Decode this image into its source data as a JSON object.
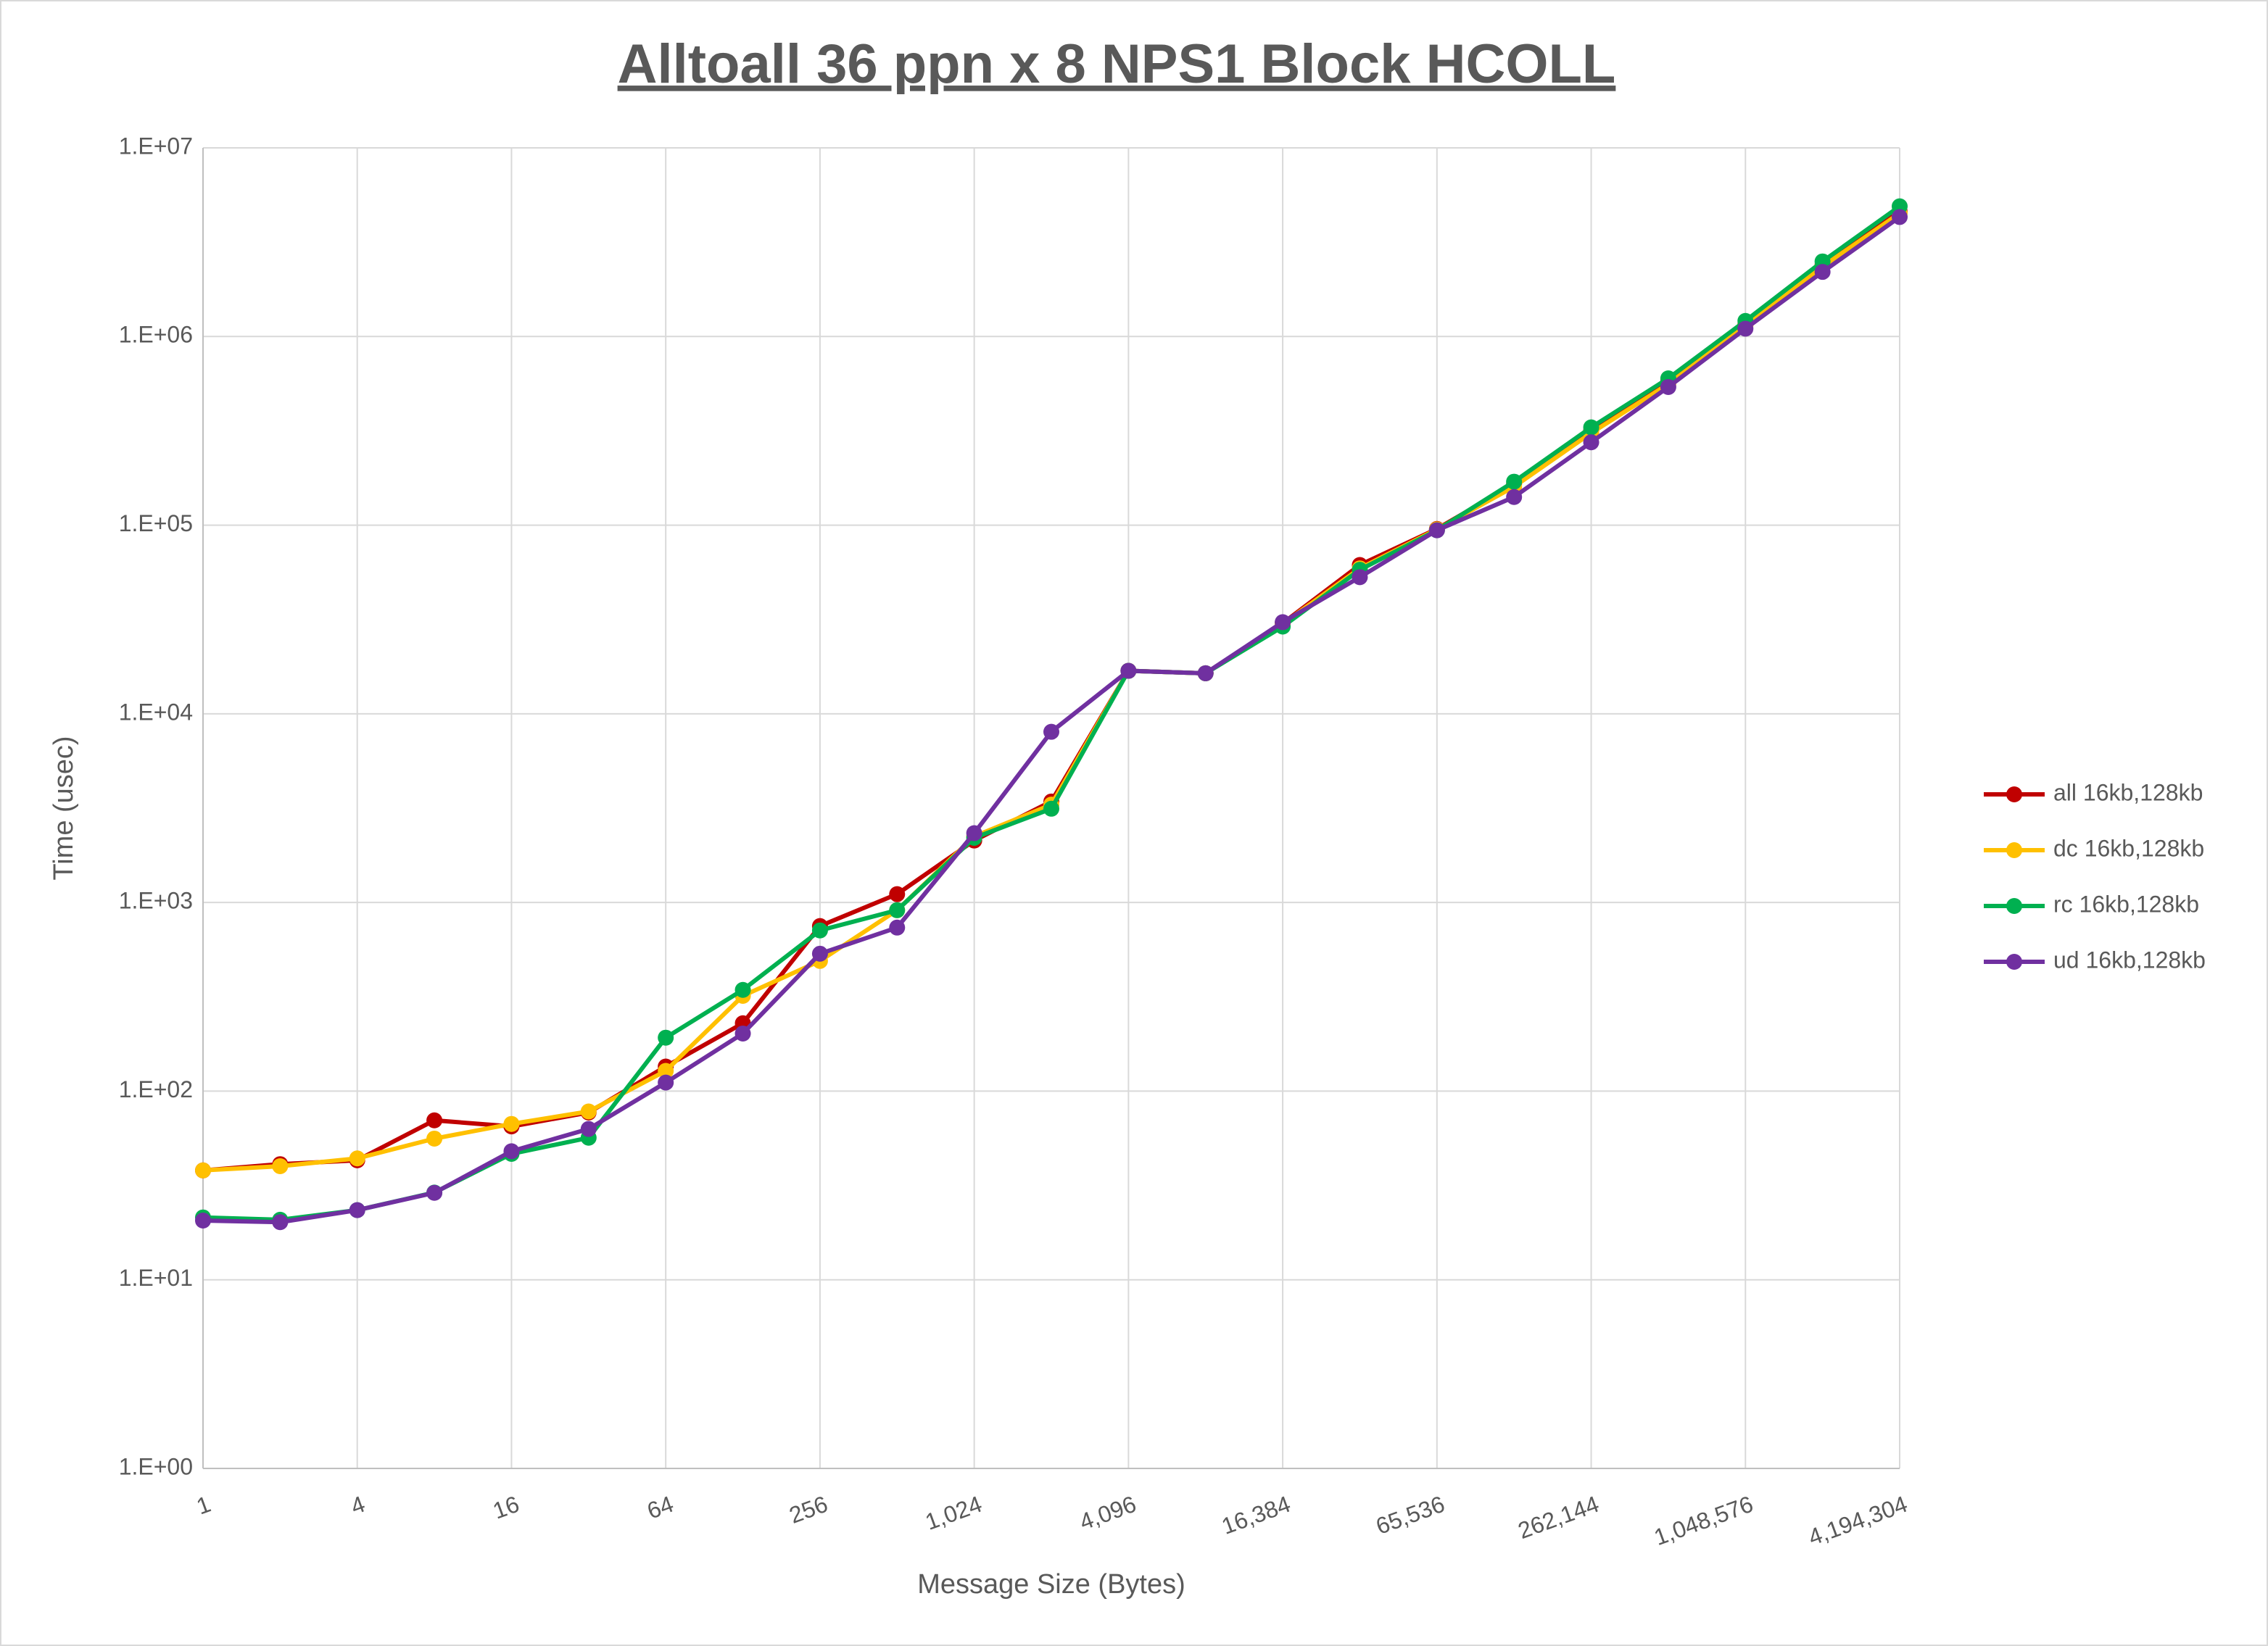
{
  "chart_data": {
    "type": "line",
    "title": "Alltoall 36 ppn x 8 NPS1 Block HCOLL",
    "x_label": "Message Size (Bytes)",
    "y_label": "Time (usec)",
    "x": [
      1,
      2,
      4,
      8,
      16,
      32,
      64,
      128,
      256,
      512,
      1024,
      2048,
      4096,
      8192,
      16384,
      32768,
      65536,
      131072,
      262144,
      524288,
      1048576,
      2097152,
      4194304
    ],
    "series": [
      {
        "name": "all 16kb,128kb",
        "color": "#c00000",
        "values": [
          38,
          41,
          43,
          70,
          65,
          77,
          135,
          229,
          750,
          1107,
          2130,
          3430,
          16900,
          16400,
          30200,
          61500,
          95500,
          165000,
          318000,
          582000,
          1160000,
          2400000,
          4600000
        ]
      },
      {
        "name": "dc 16kb,128kb",
        "color": "#ffc000",
        "values": [
          38,
          40,
          44,
          56,
          67,
          78,
          128,
          320,
          490,
          910,
          2240,
          3300,
          16900,
          16400,
          30000,
          59000,
          95000,
          160000,
          308000,
          560000,
          1140000,
          2350000,
          4500000
        ]
      },
      {
        "name": "rc 16kb,128kb",
        "color": "#00b050",
        "values": [
          21.4,
          20.8,
          23.4,
          29,
          46.5,
          56.6,
          192,
          344,
          711,
          910,
          2200,
          3140,
          16900,
          16400,
          29000,
          58000,
          94000,
          170000,
          330000,
          600000,
          1210000,
          2500000,
          4900000
        ]
      },
      {
        "name": "ud 16kb,128kb",
        "color": "#7030a0",
        "values": [
          20.6,
          20.2,
          23.4,
          28.9,
          48,
          63,
          111,
          202,
          535,
          736,
          2330,
          8030,
          16900,
          16400,
          30600,
          53000,
          94000,
          141000,
          275000,
          540000,
          1100000,
          2200000,
          4300000
        ]
      }
    ],
    "xscale": "log",
    "yscale": "log",
    "xlim": [
      1,
      4194304
    ],
    "xticks": [
      1,
      4,
      16,
      64,
      256,
      {
        "value": 1024,
        "label": "1,024"
      },
      {
        "value": 4096,
        "label": "4,096"
      },
      {
        "value": 16384,
        "label": "16,384"
      },
      {
        "value": 65536,
        "label": "65,536"
      },
      {
        "value": 262144,
        "label": "262,144"
      },
      {
        "value": 1048576,
        "label": "1,048,576"
      },
      {
        "value": 4194304,
        "label": "4,194,304"
      }
    ],
    "ylim": [
      1,
      10000000
    ],
    "yticks": [
      {
        "value": 1,
        "label": "1.E+00"
      },
      {
        "value": 10,
        "label": "1.E+01"
      },
      {
        "value": 100,
        "label": "1.E+02"
      },
      {
        "value": 1000,
        "label": "1.E+03"
      },
      {
        "value": 10000,
        "label": "1.E+04"
      },
      {
        "value": 100000,
        "label": "1.E+05"
      },
      {
        "value": 1000000,
        "label": "1.E+06"
      },
      {
        "value": 10000000,
        "label": "1.E+07"
      }
    ],
    "grid": true,
    "legend": "right"
  }
}
